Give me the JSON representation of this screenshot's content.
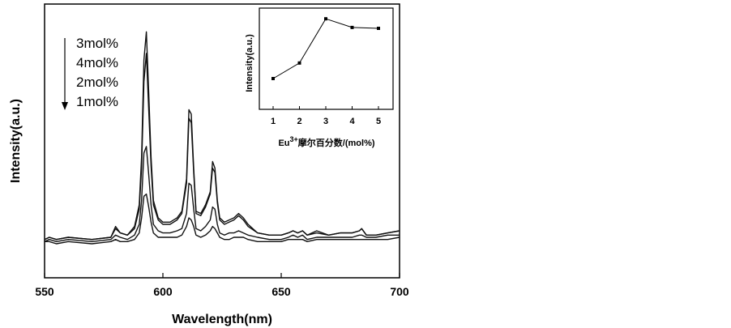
{
  "chart_data": [
    {
      "type": "line",
      "xlabel": "Wavelength(nm)",
      "ylabel": "Intensity(a.u.)",
      "xlim": [
        550,
        700
      ],
      "xticks": [
        "550",
        "600",
        "650",
        "700"
      ],
      "y_tick_labels": false,
      "grid": false,
      "legend": {
        "placement": "top-left",
        "entries": [
          "3mol%",
          "4mol%",
          "2mol%",
          "1mol%"
        ],
        "arrow": "down"
      },
      "series": [
        {
          "name": "3mol%",
          "x": [
            550,
            552,
            555,
            560,
            570,
            578,
            580,
            582,
            585,
            588,
            590,
            591,
            592,
            593,
            594,
            595,
            596,
            598,
            600,
            603,
            606,
            608,
            610,
            611,
            612,
            613,
            614,
            616,
            618,
            620,
            621,
            622,
            623,
            624,
            626,
            628,
            630,
            632,
            634,
            636,
            640,
            645,
            650,
            653,
            655,
            657,
            659,
            661,
            665,
            670,
            675,
            680,
            683,
            684,
            686,
            690,
            695,
            700
          ],
          "y": [
            2,
            3,
            2,
            3,
            2,
            3,
            8,
            5,
            4,
            8,
            18,
            40,
            85,
            98,
            70,
            40,
            20,
            12,
            10,
            10,
            12,
            15,
            30,
            62,
            60,
            35,
            15,
            14,
            18,
            24,
            38,
            35,
            20,
            12,
            10,
            11,
            12,
            14,
            12,
            9,
            5,
            4,
            4,
            5,
            6,
            5,
            6,
            4,
            6,
            4,
            5,
            5,
            6,
            7,
            4,
            4,
            5,
            6
          ]
        },
        {
          "name": "4mol%",
          "x": [
            550,
            552,
            555,
            560,
            570,
            578,
            580,
            582,
            585,
            588,
            590,
            591,
            592,
            593,
            594,
            595,
            596,
            598,
            600,
            603,
            606,
            608,
            610,
            611,
            612,
            613,
            614,
            616,
            618,
            620,
            621,
            622,
            623,
            624,
            626,
            628,
            630,
            632,
            634,
            636,
            640,
            645,
            650,
            653,
            655,
            657,
            659,
            661,
            665,
            670,
            675,
            680,
            683,
            684,
            686,
            690,
            695,
            700
          ],
          "y": [
            2,
            3,
            2,
            3,
            2,
            3,
            7,
            5,
            4,
            7,
            16,
            35,
            75,
            88,
            62,
            36,
            18,
            11,
            9,
            9,
            11,
            14,
            28,
            58,
            56,
            33,
            14,
            13,
            17,
            23,
            35,
            33,
            19,
            11,
            9,
            10,
            11,
            13,
            11,
            8,
            5,
            4,
            4,
            5,
            6,
            5,
            6,
            4,
            5,
            4,
            5,
            5,
            6,
            7,
            4,
            4,
            5,
            6
          ]
        },
        {
          "name": "2mol%",
          "x": [
            550,
            552,
            555,
            560,
            570,
            578,
            580,
            582,
            585,
            588,
            590,
            591,
            592,
            593,
            594,
            595,
            596,
            598,
            600,
            603,
            606,
            608,
            610,
            611,
            612,
            613,
            614,
            616,
            618,
            620,
            621,
            622,
            623,
            624,
            626,
            628,
            630,
            632,
            634,
            636,
            640,
            645,
            650,
            653,
            655,
            657,
            659,
            661,
            665,
            670,
            675,
            680,
            683,
            684,
            686,
            690,
            695,
            700
          ],
          "y": [
            1,
            2,
            1,
            2,
            1,
            2,
            4,
            3,
            2,
            4,
            9,
            20,
            42,
            45,
            32,
            18,
            9,
            6,
            5,
            5,
            6,
            7,
            14,
            28,
            27,
            16,
            7,
            6,
            8,
            11,
            17,
            16,
            9,
            5,
            4,
            5,
            5,
            6,
            5,
            4,
            3,
            2,
            2,
            3,
            4,
            3,
            4,
            2,
            3,
            3,
            3,
            3,
            4,
            4,
            3,
            3,
            4,
            4
          ]
        },
        {
          "name": "1mol%",
          "x": [
            550,
            552,
            555,
            560,
            570,
            578,
            580,
            582,
            585,
            588,
            590,
            591,
            592,
            593,
            594,
            595,
            596,
            598,
            600,
            603,
            606,
            608,
            610,
            611,
            612,
            613,
            614,
            616,
            618,
            620,
            621,
            622,
            623,
            624,
            626,
            628,
            630,
            632,
            634,
            636,
            640,
            645,
            650,
            653,
            655,
            657,
            659,
            661,
            665,
            670,
            675,
            680,
            683,
            684,
            686,
            690,
            695,
            700
          ],
          "y": [
            1,
            1,
            0,
            1,
            0,
            1,
            2,
            1,
            1,
            2,
            5,
            12,
            22,
            23,
            17,
            10,
            5,
            3,
            3,
            3,
            3,
            4,
            8,
            12,
            11,
            8,
            4,
            3,
            4,
            6,
            8,
            7,
            5,
            3,
            2,
            2,
            3,
            3,
            3,
            2,
            1,
            1,
            1,
            2,
            2,
            2,
            2,
            1,
            2,
            2,
            2,
            2,
            2,
            2,
            2,
            2,
            2,
            3
          ]
        }
      ]
    },
    {
      "type": "line",
      "xlabel": "Eu3+摩尔百分数/(mol%)",
      "xlabel_parts": {
        "base": "Eu",
        "sup": "3+",
        "rest": "摩尔百分数/(mol%)"
      },
      "ylabel": "Intensity(a.u.)",
      "categories": [
        "1",
        "2",
        "3",
        "4",
        "5"
      ],
      "xlim": [
        0.5,
        5.5
      ],
      "ylim": [
        0,
        100
      ],
      "y_tick_labels": false,
      "series": [
        {
          "x": [
            1,
            2,
            3,
            4,
            5
          ],
          "values": [
            28,
            46,
            97,
            87,
            86
          ]
        }
      ]
    }
  ]
}
